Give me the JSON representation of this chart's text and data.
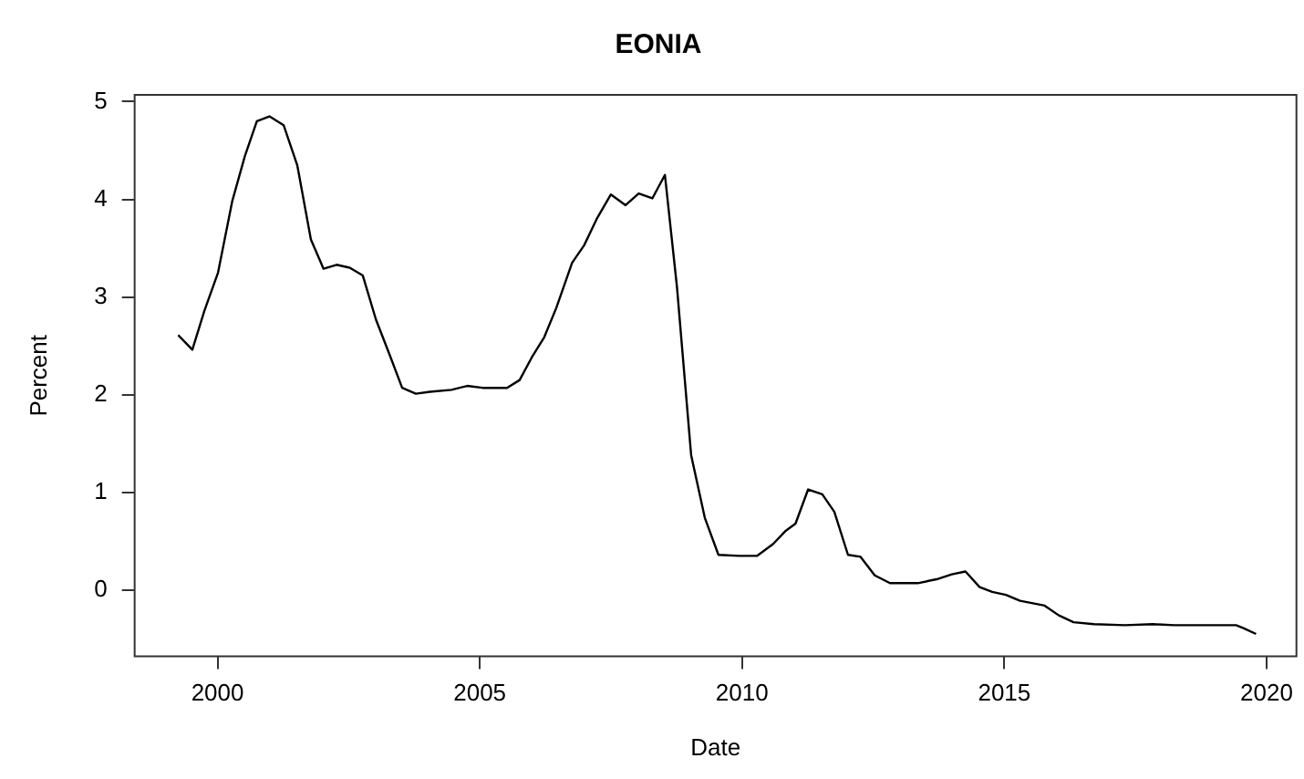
{
  "chart_data": {
    "type": "line",
    "title": "EONIA",
    "xlabel": "Date",
    "ylabel": "Percent",
    "xlim": [
      1998.42,
      2020.57
    ],
    "xticks": [
      2000,
      2005,
      2010,
      2015,
      2020
    ],
    "ylim": [
      -0.68,
      5.07
    ],
    "yticks": [
      0,
      1,
      2,
      3,
      4,
      5
    ],
    "grid": false,
    "legend": false,
    "marker": "none",
    "line_style": "solid",
    "series": [
      {
        "color": "#000000",
        "x": [
          1999.25,
          1999.52,
          1999.75,
          2000.01,
          2000.28,
          2000.52,
          2000.75,
          2000.99,
          2001.26,
          2001.52,
          2001.78,
          2002.02,
          2002.27,
          2002.52,
          2002.77,
          2003.02,
          2003.28,
          2003.52,
          2003.78,
          2004.05,
          2004.46,
          2004.76,
          2005.05,
          2005.52,
          2005.76,
          2005.99,
          2006.23,
          2006.46,
          2006.76,
          2006.99,
          2007.23,
          2007.5,
          2007.78,
          2008.03,
          2008.29,
          2008.53,
          2008.76,
          2009.03,
          2009.29,
          2009.55,
          2009.94,
          2010.29,
          2010.59,
          2010.82,
          2011.02,
          2011.26,
          2011.53,
          2011.76,
          2012.02,
          2012.26,
          2012.53,
          2012.82,
          2013.35,
          2013.71,
          2014.0,
          2014.26,
          2014.53,
          2014.77,
          2015.03,
          2015.3,
          2015.77,
          2016.04,
          2016.32,
          2016.71,
          2017.3,
          2017.83,
          2018.24,
          2018.83,
          2019.42,
          2019.56,
          2019.8
        ],
        "values": [
          2.61,
          2.46,
          2.86,
          3.25,
          3.98,
          4.44,
          4.8,
          4.85,
          4.76,
          4.35,
          3.59,
          3.29,
          3.33,
          3.3,
          3.22,
          2.77,
          2.41,
          2.07,
          2.01,
          2.03,
          2.05,
          2.09,
          2.07,
          2.07,
          2.15,
          2.38,
          2.59,
          2.89,
          3.35,
          3.53,
          3.8,
          4.05,
          3.94,
          4.06,
          4.01,
          4.25,
          3.1,
          1.38,
          0.74,
          0.36,
          0.35,
          0.35,
          0.47,
          0.6,
          0.68,
          1.03,
          0.98,
          0.8,
          0.36,
          0.34,
          0.15,
          0.07,
          0.07,
          0.11,
          0.16,
          0.19,
          0.03,
          -0.02,
          -0.05,
          -0.11,
          -0.16,
          -0.26,
          -0.33,
          -0.35,
          -0.36,
          -0.35,
          -0.36,
          -0.36,
          -0.36,
          -0.39,
          -0.45
        ]
      }
    ]
  }
}
